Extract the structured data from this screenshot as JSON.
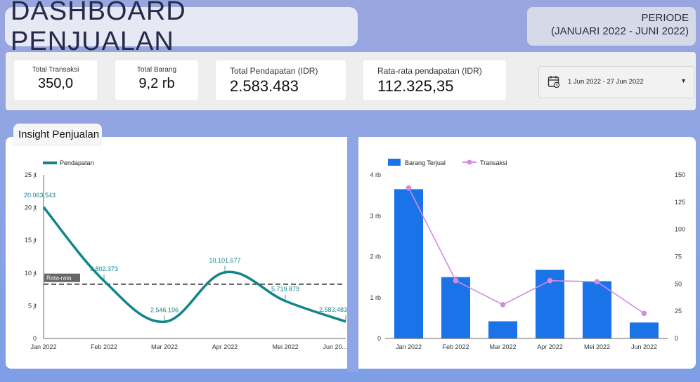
{
  "header": {
    "title": "DASHBOARD PENJUALAN",
    "period_line1": "PERIODE",
    "period_line2": "(JANUARI 2022 - JUNI 2022)"
  },
  "kpis": {
    "total_transaksi": {
      "label": "Total Transaksi",
      "value": "350,0"
    },
    "total_barang": {
      "label": "Total Barang",
      "value": "9,2 rb"
    },
    "total_pendapatan": {
      "label": "Total Pendapatan (IDR)",
      "value": "2.583.483"
    },
    "rata_pendapatan": {
      "label": "Rata-rata pendapatan (IDR)",
      "value": "112.325,35"
    }
  },
  "date_range": {
    "text": "1 Jun 2022 - 27 Jun 2022",
    "icon": "calendar-icon",
    "dropdown_icon": "caret-down-icon"
  },
  "section": {
    "tab_label": "Insight Penjualan"
  },
  "colors": {
    "teal": "#13858a",
    "blue": "#1a73e8",
    "purple": "#cf8ee0"
  },
  "chart_data": [
    {
      "type": "line",
      "series": [
        {
          "name": "Pendapatan",
          "values": [
            20063543,
            8802373,
            2546196,
            10101677,
            5719879,
            2583483
          ]
        }
      ],
      "categories": [
        "Jan 2022",
        "Feb 2022",
        "Mar 2022",
        "Apr 2022",
        "Mei 2022",
        "Jun 20..."
      ],
      "data_labels": [
        "20.063.543",
        "8.802.373",
        "2.546.196",
        "10.101.677",
        "5.719.879",
        "2.583.483"
      ],
      "y_ticks": [
        "0",
        "5 jt",
        "10 jt",
        "15 jt",
        "20 jt",
        "25 jt"
      ],
      "ylim": [
        0,
        25000000
      ],
      "reference_line": {
        "label": "Rata-rata",
        "value": 8300000
      },
      "legend_position": "top-left"
    },
    {
      "type": "bar",
      "categories": [
        "Jan 2022",
        "Feb 2022",
        "Mar 2022",
        "Apr 2022",
        "Mei 2022",
        "Jun 2022"
      ],
      "series": [
        {
          "name": "Barang Terjual",
          "type": "bar",
          "values": [
            3650,
            1500,
            420,
            1680,
            1400,
            390
          ]
        },
        {
          "name": "Transaksi",
          "type": "line",
          "values": [
            138,
            53,
            31,
            53,
            52,
            23
          ]
        }
      ],
      "y_left_ticks": [
        "0",
        "1 rb",
        "2 rb",
        "3 rb",
        "4 rb"
      ],
      "ylim_left": [
        0,
        4000
      ],
      "y_right_ticks": [
        "0",
        "25",
        "50",
        "75",
        "100",
        "125",
        "150"
      ],
      "ylim_right": [
        0,
        150
      ],
      "legend_position": "top-left"
    }
  ]
}
